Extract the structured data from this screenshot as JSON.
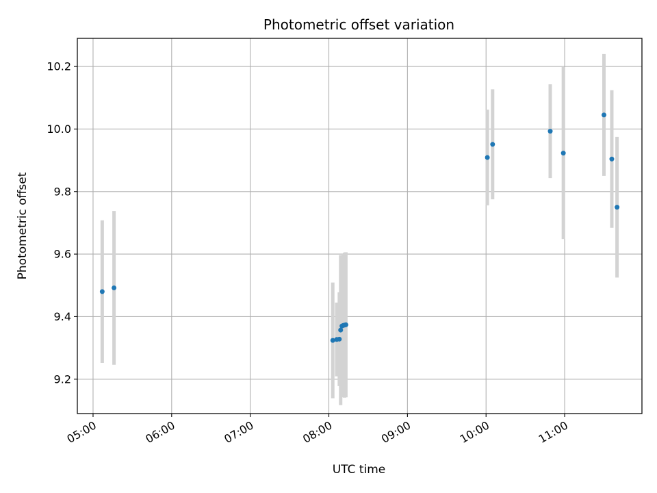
{
  "chart_data": {
    "type": "scatter",
    "title": "Photometric offset variation",
    "xlabel": "UTC time",
    "ylabel": "Photometric offset",
    "x_unit": "UTC",
    "xlim": [
      "04:48",
      "11:59"
    ],
    "ylim": [
      9.09,
      10.29
    ],
    "xticks": [
      "05:00",
      "06:00",
      "07:00",
      "08:00",
      "09:00",
      "10:00",
      "11:00"
    ],
    "yticks": [
      9.2,
      9.4,
      9.6,
      9.8,
      10.0,
      10.2
    ],
    "ytick_labels": [
      "9.2",
      "9.4",
      "9.6",
      "9.8",
      "10.0",
      "10.2"
    ],
    "grid": true,
    "colors": {
      "point": "#1f77b4",
      "errorbar": "#d3d3d3",
      "grid": "#b0b0b0"
    },
    "points": [
      {
        "x": "05:07",
        "y": 9.48,
        "err": 0.228
      },
      {
        "x": "05:16",
        "y": 9.492,
        "err": 0.246
      },
      {
        "x": "08:03",
        "y": 9.324,
        "err": 0.185
      },
      {
        "x": "08:06",
        "y": 9.327,
        "err": 0.118
      },
      {
        "x": "08:08",
        "y": 9.328,
        "err": 0.15
      },
      {
        "x": "08:09",
        "y": 9.357,
        "err": 0.24
      },
      {
        "x": "08:10",
        "y": 9.37,
        "err": 0.225
      },
      {
        "x": "08:11",
        "y": 9.372,
        "err": 0.23
      },
      {
        "x": "08:12",
        "y": 9.373,
        "err": 0.232
      },
      {
        "x": "08:13",
        "y": 9.374,
        "err": 0.232
      },
      {
        "x": "10:01",
        "y": 9.909,
        "err": 0.153
      },
      {
        "x": "10:05",
        "y": 9.951,
        "err": 0.176
      },
      {
        "x": "10:49",
        "y": 9.993,
        "err": 0.15
      },
      {
        "x": "10:59",
        "y": 9.923,
        "err": 0.275
      },
      {
        "x": "11:30",
        "y": 10.045,
        "err": 0.195
      },
      {
        "x": "11:36",
        "y": 9.904,
        "err": 0.22
      },
      {
        "x": "11:40",
        "y": 9.75,
        "err": 0.225
      }
    ]
  }
}
